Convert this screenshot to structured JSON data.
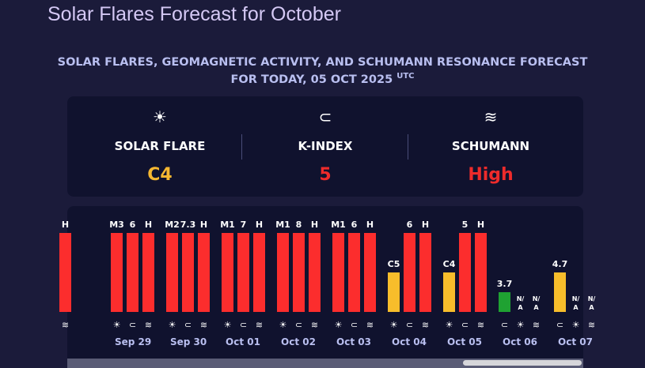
{
  "page_title": "Solar Flares Forecast for October",
  "subtitle": {
    "line1": "SOLAR FLARES, GEOMAGNETIC ACTIVITY, AND SCHUMANN RESONANCE FORECAST",
    "line2": "FOR TODAY, 05 OCT 2025",
    "utc": "UTC"
  },
  "summary": [
    {
      "icon": "sun-icon",
      "glyph": "☀",
      "label": "SOLAR FLARE",
      "value": "C4",
      "color": "#f6b731"
    },
    {
      "icon": "magnet-icon",
      "glyph": "⊂",
      "label": "K-INDEX",
      "value": "5",
      "color": "#ee2b2b"
    },
    {
      "icon": "waves-icon",
      "glyph": "≋",
      "label": "SCHUMANN",
      "value": "High",
      "color": "#ee2b2b"
    }
  ],
  "colors": {
    "red": "#fc2d2d",
    "yellow": "#f7bd2b",
    "green": "#1fa232"
  },
  "chart_data": {
    "type": "bar",
    "categories": [
      "",
      "Sep 29",
      "Sep 30",
      "Oct 01",
      "Oct 02",
      "Oct 03",
      "Oct 04",
      "Oct 05",
      "Oct 06",
      "Oct 07"
    ],
    "days": [
      {
        "date": "",
        "bars": [
          {
            "kind": "schumann",
            "label": "H",
            "level": 1,
            "color": "red"
          }
        ]
      },
      {
        "date": "Sep 29",
        "bars": [
          {
            "kind": "flare",
            "label": "M3",
            "level": 1,
            "color": "red"
          },
          {
            "kind": "kindex",
            "label": "6",
            "level": 1,
            "color": "red"
          },
          {
            "kind": "schumann",
            "label": "H",
            "level": 1,
            "color": "red"
          }
        ]
      },
      {
        "date": "Sep 30",
        "bars": [
          {
            "kind": "flare",
            "label": "M2",
            "level": 1,
            "color": "red"
          },
          {
            "kind": "kindex",
            "label": "7.3",
            "level": 1,
            "color": "red"
          },
          {
            "kind": "schumann",
            "label": "H",
            "level": 1,
            "color": "red"
          }
        ]
      },
      {
        "date": "Oct 01",
        "bars": [
          {
            "kind": "flare",
            "label": "M1",
            "level": 1,
            "color": "red"
          },
          {
            "kind": "kindex",
            "label": "7",
            "level": 1,
            "color": "red"
          },
          {
            "kind": "schumann",
            "label": "H",
            "level": 1,
            "color": "red"
          }
        ]
      },
      {
        "date": "Oct 02",
        "bars": [
          {
            "kind": "flare",
            "label": "M1",
            "level": 1,
            "color": "red"
          },
          {
            "kind": "kindex",
            "label": "8",
            "level": 1,
            "color": "red"
          },
          {
            "kind": "schumann",
            "label": "H",
            "level": 1,
            "color": "red"
          }
        ]
      },
      {
        "date": "Oct 03",
        "bars": [
          {
            "kind": "flare",
            "label": "M1",
            "level": 1,
            "color": "red"
          },
          {
            "kind": "kindex",
            "label": "6",
            "level": 1,
            "color": "red"
          },
          {
            "kind": "schumann",
            "label": "H",
            "level": 1,
            "color": "red"
          }
        ]
      },
      {
        "date": "Oct 04",
        "bars": [
          {
            "kind": "flare",
            "label": "C5",
            "level": 0.5,
            "color": "yellow"
          },
          {
            "kind": "kindex",
            "label": "6",
            "level": 1,
            "color": "red"
          },
          {
            "kind": "schumann",
            "label": "H",
            "level": 1,
            "color": "red"
          }
        ]
      },
      {
        "date": "Oct 05",
        "bars": [
          {
            "kind": "flare",
            "label": "C4",
            "level": 0.5,
            "color": "yellow"
          },
          {
            "kind": "kindex",
            "label": "5",
            "level": 1,
            "color": "red"
          },
          {
            "kind": "schumann",
            "label": "H",
            "level": 1,
            "color": "red"
          }
        ]
      },
      {
        "date": "Oct 06",
        "bars": [
          {
            "kind": "kindex",
            "label": "3.7",
            "level": 0.25,
            "color": "green"
          },
          {
            "kind": "flare",
            "label": "N/A",
            "level": 0,
            "color": "none"
          },
          {
            "kind": "schumann",
            "label": "N/A",
            "level": 0,
            "color": "none"
          }
        ]
      },
      {
        "date": "Oct 07",
        "bars": [
          {
            "kind": "kindex",
            "label": "4.7",
            "level": 0.5,
            "color": "yellow"
          },
          {
            "kind": "flare",
            "label": "N/A",
            "level": 0,
            "color": "none"
          },
          {
            "kind": "schumann",
            "label": "N/A",
            "level": 0,
            "color": "none"
          }
        ]
      }
    ],
    "scroll_position": 1
  }
}
